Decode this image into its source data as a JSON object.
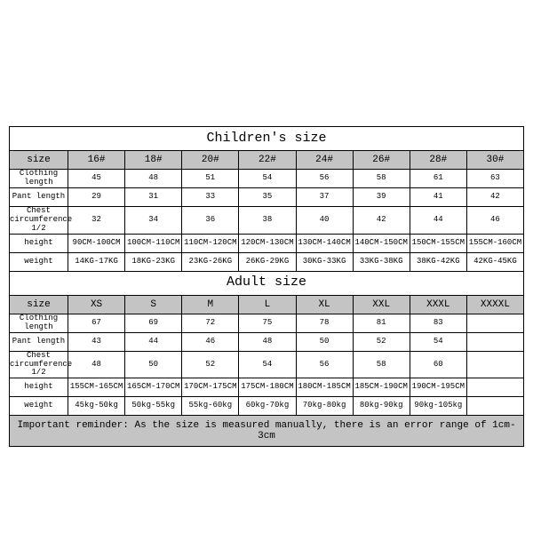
{
  "children": {
    "title": "Children's size",
    "header_label": "size",
    "sizes": [
      "16#",
      "18#",
      "20#",
      "22#",
      "24#",
      "26#",
      "28#",
      "30#"
    ],
    "rows": [
      {
        "label": "Clothing length",
        "label_class": "label-cell",
        "vals": [
          "45",
          "48",
          "51",
          "54",
          "56",
          "58",
          "61",
          "63"
        ]
      },
      {
        "label": "Pant length",
        "label_class": "label-cell",
        "vals": [
          "29",
          "31",
          "33",
          "35",
          "37",
          "39",
          "41",
          "42"
        ]
      },
      {
        "label": "Chest circumference 1/2",
        "label_class": "tiny",
        "vals": [
          "32",
          "34",
          "36",
          "38",
          "40",
          "42",
          "44",
          "46"
        ]
      },
      {
        "label": "height",
        "label_class": "label-cell",
        "vals": [
          "90CM-100CM",
          "100CM-110CM",
          "110CM-120CM",
          "120CM-130CM",
          "130CM-140CM",
          "140CM-150CM",
          "150CM-155CM",
          "155CM-160CM"
        ]
      },
      {
        "label": "weight",
        "label_class": "label-cell",
        "vals": [
          "14KG-17KG",
          "18KG-23KG",
          "23KG-26KG",
          "26KG-29KG",
          "30KG-33KG",
          "33KG-38KG",
          "38KG-42KG",
          "42KG-45KG"
        ]
      }
    ]
  },
  "adult": {
    "title": "Adult size",
    "header_label": "size",
    "sizes": [
      "XS",
      "S",
      "M",
      "L",
      "XL",
      "XXL",
      "XXXL",
      "XXXXL"
    ],
    "rows": [
      {
        "label": "Clothing length",
        "label_class": "label-cell",
        "vals": [
          "67",
          "69",
          "72",
          "75",
          "78",
          "81",
          "83",
          ""
        ]
      },
      {
        "label": "Pant length",
        "label_class": "label-cell",
        "vals": [
          "43",
          "44",
          "46",
          "48",
          "50",
          "52",
          "54",
          ""
        ]
      },
      {
        "label": "Chest circumference 1/2",
        "label_class": "tiny",
        "vals": [
          "48",
          "50",
          "52",
          "54",
          "56",
          "58",
          "60",
          ""
        ]
      },
      {
        "label": "height",
        "label_class": "label-cell",
        "vals": [
          "155CM-165CM",
          "165CM-170CM",
          "170CM-175CM",
          "175CM-180CM",
          "180CM-185CM",
          "185CM-190CM",
          "190CM-195CM",
          ""
        ]
      },
      {
        "label": "weight",
        "label_class": "label-cell",
        "vals": [
          "45kg-50kg",
          "50kg-55kg",
          "55kg-60kg",
          "60kg-70kg",
          "70kg-80kg",
          "80kg-90kg",
          "90kg-105kg",
          ""
        ]
      }
    ]
  },
  "reminder": "Important reminder: As the size is measured manually, there is an error range of 1cm-3cm",
  "style": {
    "header_bg": "#c4c4c4",
    "border_color": "#000000",
    "page_bg": "#ffffff",
    "title_fontsize": 15,
    "header_fontsize": 11,
    "data_fontsize": 9,
    "tiny_fontsize": 6,
    "reminder_fontsize": 11
  }
}
